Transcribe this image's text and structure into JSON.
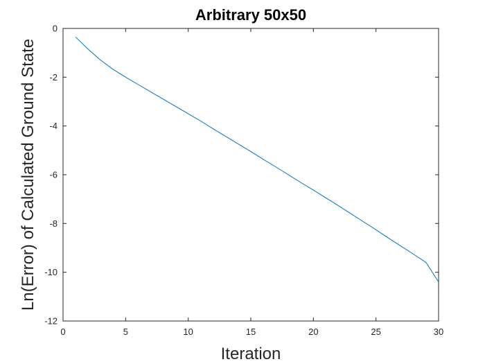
{
  "chart_data": {
    "type": "line",
    "title": "Arbitrary 50x50",
    "xlabel": "Iteration",
    "ylabel": "Ln(Error) of Calculated Ground State",
    "xlim": [
      0,
      30
    ],
    "ylim": [
      -12,
      0
    ],
    "xticks": [
      0,
      5,
      10,
      15,
      20,
      25,
      30
    ],
    "yticks": [
      0,
      -2,
      -4,
      -6,
      -8,
      -10,
      -12
    ],
    "grid": false,
    "colors": {
      "line": "#0072BD",
      "axis": "#262626",
      "background": "#ffffff"
    },
    "series": [
      {
        "x": [
          1,
          2,
          3,
          4,
          5,
          6,
          7,
          8,
          9,
          10,
          11,
          12,
          13,
          14,
          15,
          16,
          17,
          18,
          19,
          20,
          21,
          22,
          23,
          24,
          25,
          26,
          27,
          28,
          29,
          30
        ],
        "values": [
          -0.35,
          -0.85,
          -1.3,
          -1.68,
          -2.0,
          -2.3,
          -2.6,
          -2.9,
          -3.2,
          -3.5,
          -3.8,
          -4.12,
          -4.43,
          -4.74,
          -5.05,
          -5.37,
          -5.68,
          -6.0,
          -6.32,
          -6.63,
          -6.95,
          -7.27,
          -7.6,
          -7.93,
          -8.26,
          -8.6,
          -8.93,
          -9.26,
          -9.6,
          -10.4
        ]
      }
    ]
  }
}
